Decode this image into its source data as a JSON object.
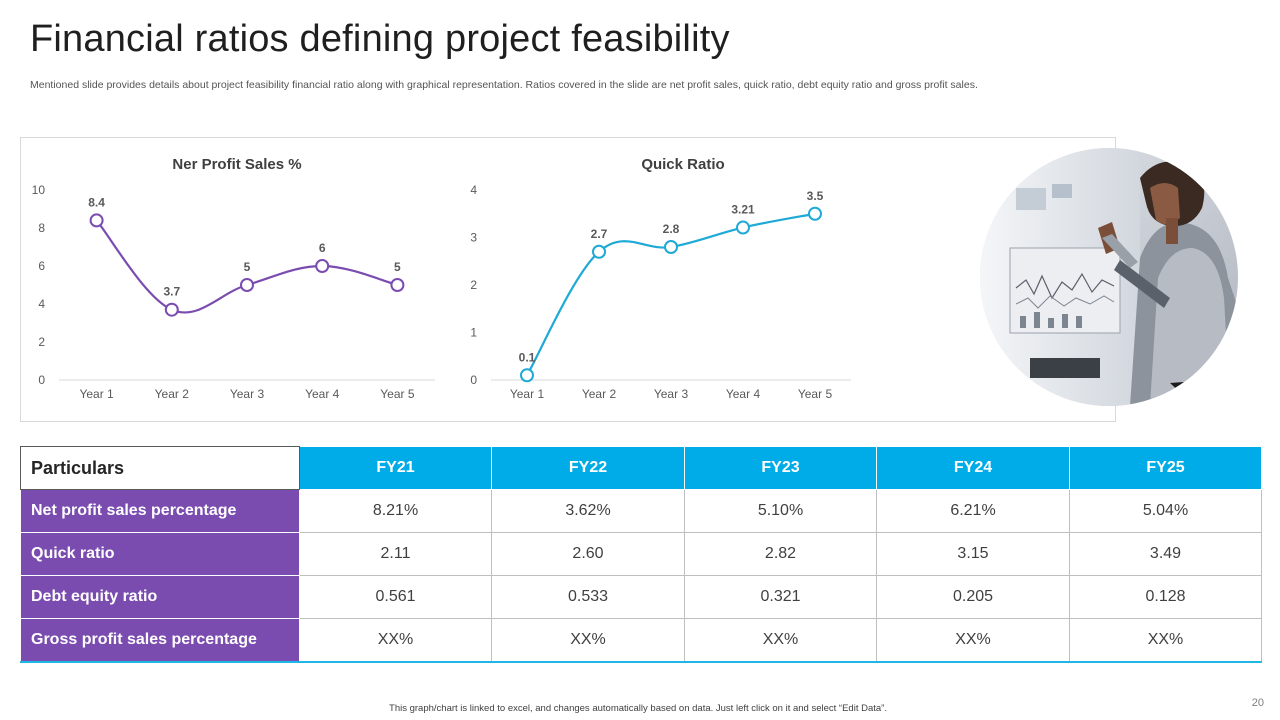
{
  "slide": {
    "title": "Financial ratios defining project feasibility",
    "subtitle": "Mentioned slide provides details about project feasibility financial ratio along with graphical representation. Ratios covered in the slide are net profit sales, quick ratio, debt equity ratio and gross profit sales.",
    "footnote": "This graph/chart is linked to excel, and changes automatically based on data. Just left click on it and select “Edit Data”.",
    "page_number": "20"
  },
  "chart_data": [
    {
      "type": "line",
      "title": "Ner Profit Sales %",
      "categories": [
        "Year 1",
        "Year 2",
        "Year 3",
        "Year 4",
        "Year 5"
      ],
      "values": [
        8.4,
        3.7,
        5,
        6,
        5
      ],
      "labels": [
        "8.4",
        "3.7",
        "5",
        "6",
        "5"
      ],
      "ylim": [
        0,
        10
      ],
      "yticks": [
        "0",
        "2",
        "4",
        "6",
        "8",
        "10"
      ],
      "color": "#7b4cb0",
      "smooth": true,
      "legend": "none"
    },
    {
      "type": "line",
      "title": "Quick Ratio",
      "categories": [
        "Year 1",
        "Year 2",
        "Year 3",
        "Year 4",
        "Year 5"
      ],
      "values": [
        0.1,
        2.7,
        2.8,
        3.21,
        3.5
      ],
      "labels": [
        "0.1",
        "2.7",
        "2.8",
        "3.21",
        "3.5"
      ],
      "ylim": [
        0,
        4
      ],
      "yticks": [
        "0",
        "1",
        "2",
        "3",
        "4"
      ],
      "color": "#1ea9d6",
      "smooth": true,
      "legend": "none"
    }
  ],
  "image": {
    "icon": "photo-woman-with-tablet-icon"
  },
  "table": {
    "corner": "Particulars",
    "headers": [
      "FY21",
      "FY22",
      "FY23",
      "FY24",
      "FY25"
    ],
    "rows": [
      {
        "label": "Net profit sales percentage",
        "values": [
          "8.21%",
          "3.62%",
          "5.10%",
          "6.21%",
          "5.04%"
        ]
      },
      {
        "label": "Quick ratio",
        "values": [
          "2.11",
          "2.60",
          "2.82",
          "3.15",
          "3.49"
        ]
      },
      {
        "label": "Debt equity ratio",
        "values": [
          "0.561",
          "0.533",
          "0.321",
          "0.205",
          "0.128"
        ]
      },
      {
        "label": "Gross profit sales percentage",
        "values": [
          "XX%",
          "XX%",
          "XX%",
          "XX%",
          "XX%"
        ]
      }
    ],
    "colors": {
      "header": "#00ace7",
      "rowhead": "#7b4cb0"
    }
  }
}
